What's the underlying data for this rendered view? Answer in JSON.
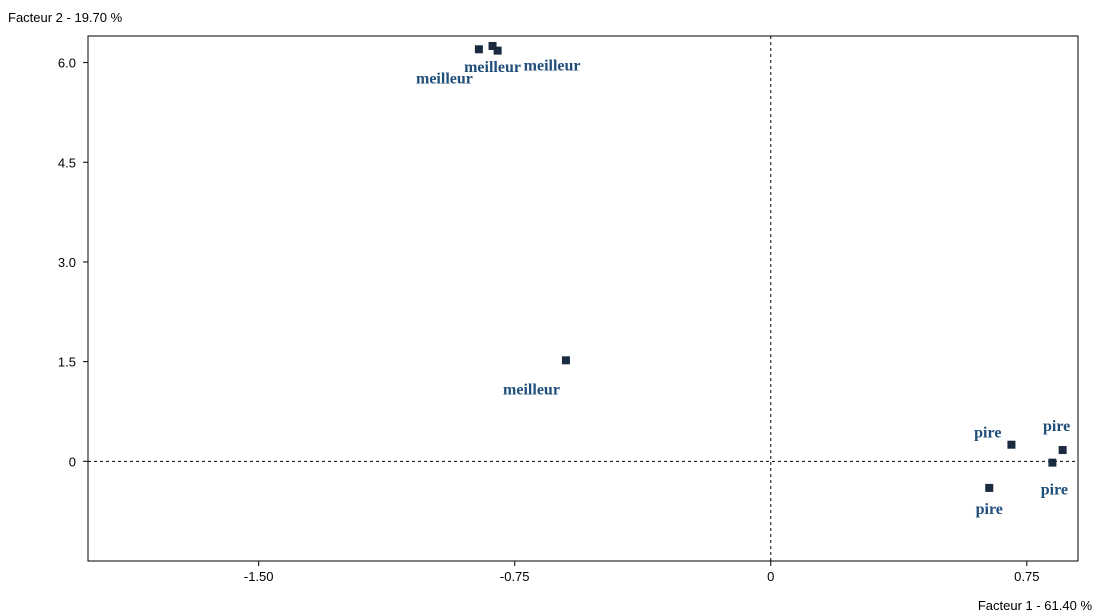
{
  "chart_data": {
    "type": "scatter",
    "title": "",
    "xlabel": "Facteur 1  -  61.40 %",
    "ylabel": "Facteur 2  -  19.70 %",
    "xlim": [
      -2.0,
      0.9
    ],
    "ylim": [
      -1.5,
      6.4
    ],
    "xticks": [
      {
        "value": -1.5,
        "label": "-1.50"
      },
      {
        "value": -0.75,
        "label": "-0.75"
      },
      {
        "value": 0,
        "label": "0"
      },
      {
        "value": 0.75,
        "label": "0.75"
      }
    ],
    "yticks": [
      {
        "value": 0,
        "label": "0"
      },
      {
        "value": 1.5,
        "label": "1.5"
      },
      {
        "value": 3.0,
        "label": "3.0"
      },
      {
        "value": 4.5,
        "label": "4.5"
      },
      {
        "value": 6.0,
        "label": "6.0"
      }
    ],
    "grid": false,
    "reference_lines": {
      "x": 0,
      "y": 0,
      "style": "dashed"
    },
    "colors": {
      "marker": "#1a2a3f",
      "label": "#1f4e7a",
      "frame": "#000000"
    },
    "points": [
      {
        "x": -0.855,
        "y": 6.2,
        "label": "meilleur",
        "label_pos": "below-left"
      },
      {
        "x": -0.815,
        "y": 6.25,
        "label": "meilleur",
        "label_pos": "below"
      },
      {
        "x": -0.8,
        "y": 6.18,
        "label": "meilleur",
        "label_pos": "right"
      },
      {
        "x": -0.6,
        "y": 1.52,
        "label": "meilleur",
        "label_pos": "below-left"
      },
      {
        "x": 0.705,
        "y": 0.25,
        "label": "pire",
        "label_pos": "left"
      },
      {
        "x": 0.855,
        "y": 0.17,
        "label": "pire",
        "label_pos": "above"
      },
      {
        "x": 0.825,
        "y": -0.02,
        "label": "pire",
        "label_pos": "below-right"
      },
      {
        "x": 0.64,
        "y": -0.4,
        "label": "pire",
        "label_pos": "below"
      }
    ]
  }
}
